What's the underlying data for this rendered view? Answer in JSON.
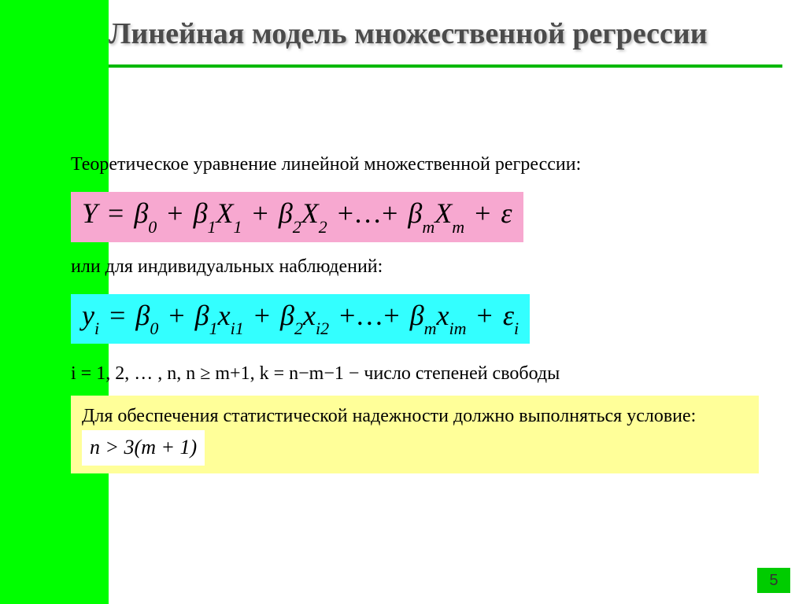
{
  "colors": {
    "sidebar": "#00ff00",
    "title_text": "#4b4b4b",
    "underline": "#00b800",
    "body_text": "#000000",
    "formula1_bg": "#f7a8d0",
    "formula2_bg": "#33ffff",
    "highlight_bg": "#ffff99",
    "inline_formula_bg": "#ffffff",
    "pagenum_bg": "#00cc00",
    "pagenum_text": "#333333"
  },
  "title": "Линейная модель множественной регрессии",
  "body": {
    "intro": "Теоретическое уравнение линейной множественной регрессии:",
    "between": "или для индивидуальных наблюдений:",
    "constraints": "i = 1, 2, … , n,  n ≥ m+1,  k = n−m−1  −  число степеней свободы",
    "reliability_lead": "Для обеспечения статистической надежности должно выполняться условие: "
  },
  "formulas": {
    "eq1_html": "<i>Y</i> <span class='op'>=</span> <i>β</i><span class='sub'>0</span> <span class='op'>+</span> <i>β</i><span class='sub'>1</span><i>X</i><span class='sub'>1</span> <span class='op'>+</span> <i>β</i><span class='sub'>2</span><i>X</i><span class='sub'>2</span> <span class='op'>+…+</span> <i>β</i><span class='sub'>m</span><i>X</i><span class='sub'>m</span> <span class='op'>+</span> <i>ε</i>",
    "eq2_html": "<i>y</i><span class='sub'>i</span> <span class='op'>=</span> <i>β</i><span class='sub'>0</span> <span class='op'>+</span> <i>β</i><span class='sub'>1</span><i>x</i><span class='sub'>i1</span> <span class='op'>+</span> <i>β</i><span class='sub'>2</span><i>x</i><span class='sub'>i2</span> <span class='op'>+…+</span> <i>β</i><span class='sub'>m</span><i>x</i><span class='sub'>im</span> <span class='op'>+</span> <i>ε</i><span class='sub'>i</span>",
    "cond_html": "<i>n</i> &gt; 3(<i>m</i> + 1)"
  },
  "page_number": "5"
}
